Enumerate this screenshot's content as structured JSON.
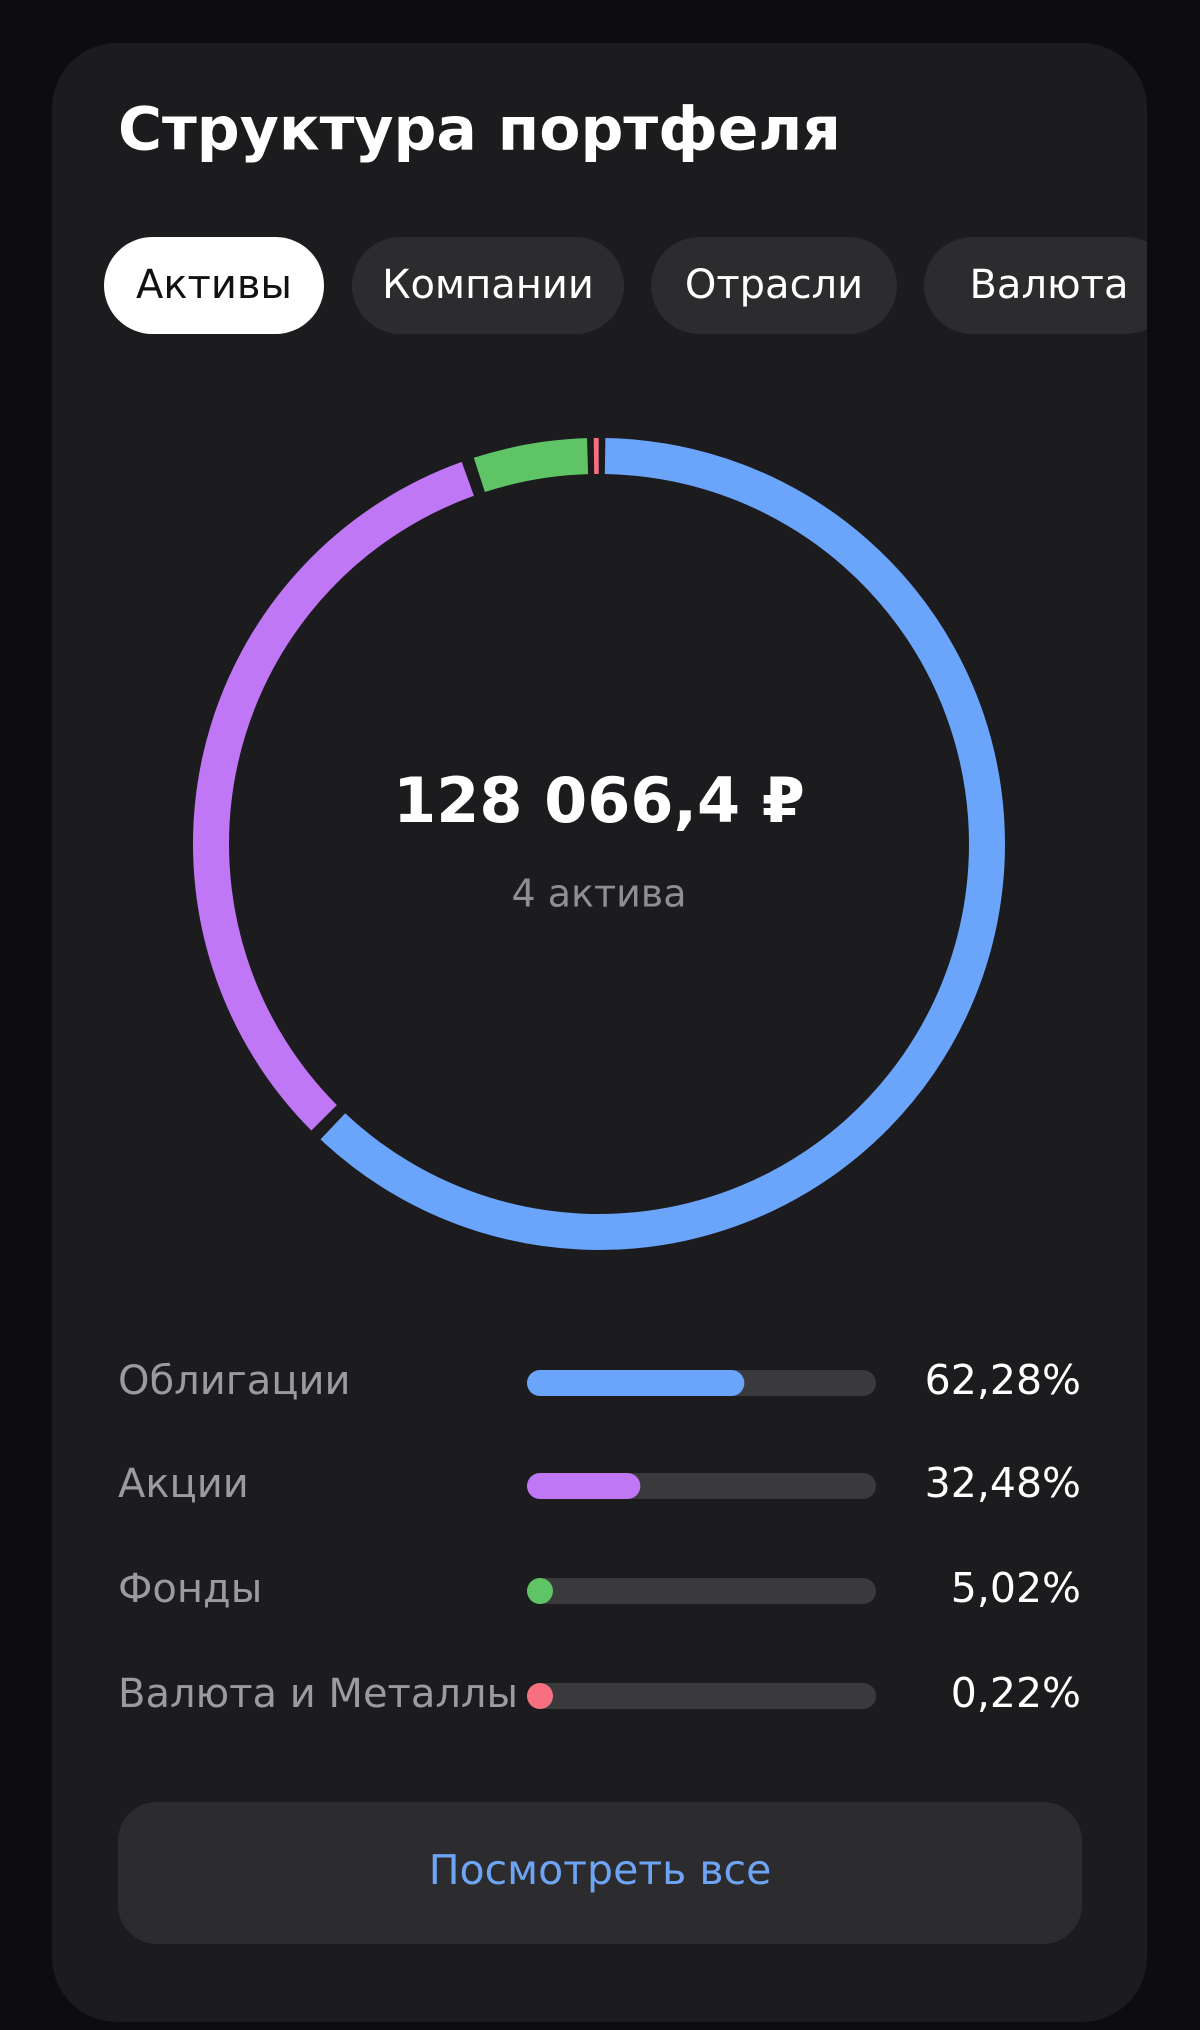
{
  "title": "Структура портфеля",
  "tabs": [
    {
      "label": "Активы",
      "active": true
    },
    {
      "label": "Компании",
      "active": false
    },
    {
      "label": "Отрасли",
      "active": false
    },
    {
      "label": "Валюта",
      "active": false
    }
  ],
  "chart_data": {
    "type": "donut",
    "center_value": "128 066,4 ₽",
    "center_label": "4 актива",
    "categories": [
      "Облигации",
      "Акции",
      "Фонды",
      "Валюта и Металлы"
    ],
    "values": [
      62.28,
      32.48,
      5.02,
      0.22
    ],
    "value_labels": [
      "62,28%",
      "32,48%",
      "5,02%",
      "0,22%"
    ],
    "colors": [
      "#6aa5fb",
      "#c077f5",
      "#5ec466",
      "#f7707f"
    ]
  },
  "button": "Посмотреть все"
}
